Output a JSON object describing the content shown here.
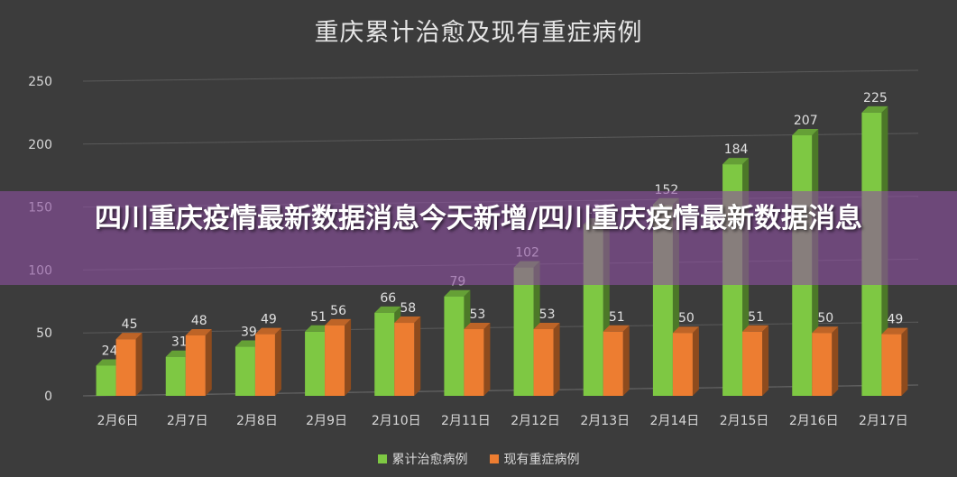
{
  "overlay": {
    "headline": "四川重庆疫情最新数据消息今天新增/四川重庆疫情最新数据消息"
  },
  "chart_data": {
    "type": "bar",
    "title": "重庆累计治愈及现有重症病例",
    "categories": [
      "2月6日",
      "2月7日",
      "2月8日",
      "2月9日",
      "2月10日",
      "2月11日",
      "2月12日",
      "2月13日",
      "2月14日",
      "2月15日",
      "2月16日",
      "2月17日"
    ],
    "series": [
      {
        "name": "累计治愈病例",
        "color": "#7ec843",
        "values": [
          24,
          31,
          39,
          51,
          66,
          79,
          102,
          136,
          152,
          184,
          207,
          225
        ]
      },
      {
        "name": "现有重症病例",
        "color": "#ed7d31",
        "values": [
          45,
          48,
          49,
          56,
          58,
          53,
          53,
          51,
          50,
          51,
          50,
          49
        ]
      }
    ],
    "ylim": [
      0,
      250
    ],
    "yticks": [
      0,
      50,
      100,
      150,
      200,
      250
    ],
    "grid": true,
    "legend_position": "bottom",
    "xlabel": "",
    "ylabel": ""
  }
}
